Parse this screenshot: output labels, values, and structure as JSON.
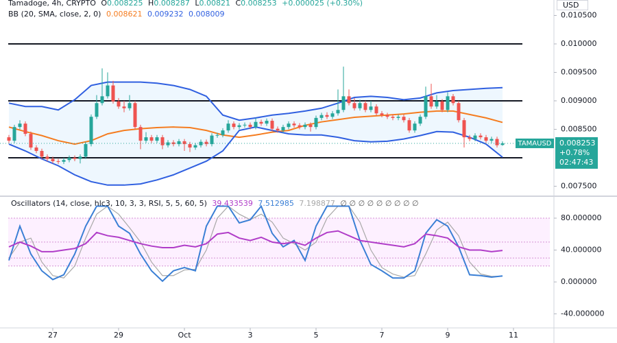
{
  "chart_data": [
    {
      "type": "candlestick",
      "title": "Tamadoge, 4h, CRYPTO",
      "ohlc_labels": [
        "O",
        "H",
        "L",
        "C"
      ],
      "change_label": "+0.000025 (+0.30%)",
      "currency": "USD",
      "up_color": "#26a69a",
      "down_color": "#ef5350",
      "x": [
        0,
        1,
        2,
        3,
        4,
        5,
        6,
        7,
        8,
        9,
        10,
        11,
        12,
        13,
        14,
        15,
        16,
        17,
        18,
        19,
        20,
        21,
        22,
        23,
        24,
        25,
        26,
        27,
        28,
        29,
        30,
        31,
        32,
        33,
        34,
        35,
        36,
        37,
        38,
        39,
        40,
        41,
        42,
        43,
        44,
        45,
        46,
        47,
        48,
        49,
        50,
        51,
        52,
        53,
        54,
        55,
        56,
        57,
        58,
        59,
        60,
        61,
        62,
        63,
        64,
        65,
        66,
        67,
        68,
        69,
        70,
        71,
        72,
        73,
        74,
        75,
        76,
        77,
        78,
        79,
        80,
        81,
        82,
        83,
        84,
        85,
        86,
        87,
        88,
        89,
        90
      ],
      "open": [
        0.00836,
        0.0083,
        0.00854,
        0.0086,
        0.00842,
        0.00818,
        0.00812,
        0.00802,
        0.00798,
        0.00794,
        0.00793,
        0.00796,
        0.008,
        0.00798,
        0.00802,
        0.00824,
        0.00872,
        0.00896,
        0.00908,
        0.00927,
        0.00899,
        0.0089,
        0.00887,
        0.00896,
        0.00854,
        0.0083,
        0.00836,
        0.0083,
        0.00836,
        0.00822,
        0.00827,
        0.00824,
        0.00829,
        0.00824,
        0.00818,
        0.00822,
        0.00828,
        0.00824,
        0.00839,
        0.0084,
        0.00848,
        0.0086,
        0.00854,
        0.00857,
        0.00858,
        0.00854,
        0.00863,
        0.0086,
        0.00865,
        0.00851,
        0.00848,
        0.00854,
        0.0086,
        0.00857,
        0.00854,
        0.00858,
        0.00854,
        0.0087,
        0.00875,
        0.00872,
        0.00878,
        0.00884,
        0.00908,
        0.00896,
        0.00887,
        0.00896,
        0.00884,
        0.0089,
        0.00878,
        0.00875,
        0.00872,
        0.0087,
        0.00872,
        0.00866,
        0.00848,
        0.0086,
        0.00872,
        0.00908,
        0.0089,
        0.00899,
        0.00884,
        0.00908,
        0.00896,
        0.00866,
        0.00836,
        0.00833,
        0.00839,
        0.00836,
        0.0083,
        0.00833,
        0.008225
      ],
      "high": [
        0.0084,
        0.00858,
        0.00866,
        0.00864,
        0.00846,
        0.00822,
        0.00816,
        0.00806,
        0.00802,
        0.00798,
        0.008,
        0.00804,
        0.00804,
        0.00806,
        0.00828,
        0.00876,
        0.0091,
        0.00957,
        0.0095,
        0.00935,
        0.00905,
        0.009,
        0.0091,
        0.009,
        0.00858,
        0.00845,
        0.0084,
        0.0084,
        0.0084,
        0.00831,
        0.00831,
        0.00833,
        0.00833,
        0.00828,
        0.00826,
        0.00832,
        0.00832,
        0.00843,
        0.00844,
        0.00852,
        0.00866,
        0.00864,
        0.00861,
        0.00862,
        0.00862,
        0.0087,
        0.00867,
        0.00869,
        0.00869,
        0.00855,
        0.00858,
        0.00864,
        0.00864,
        0.00861,
        0.00862,
        0.00862,
        0.00874,
        0.00879,
        0.0088,
        0.00882,
        0.0092,
        0.0096,
        0.0092,
        0.00905,
        0.00902,
        0.009,
        0.009,
        0.00894,
        0.00882,
        0.00879,
        0.00876,
        0.00876,
        0.00876,
        0.0087,
        0.00864,
        0.00876,
        0.00925,
        0.0093,
        0.0091,
        0.00903,
        0.00915,
        0.00912,
        0.009,
        0.0087,
        0.0084,
        0.00843,
        0.00843,
        0.0084,
        0.00837,
        0.00837,
        0.008287
      ],
      "low": [
        0.00826,
        0.00826,
        0.0085,
        0.00838,
        0.00814,
        0.00808,
        0.00798,
        0.00794,
        0.0079,
        0.00789,
        0.00789,
        0.00792,
        0.00794,
        0.0079,
        0.00798,
        0.0082,
        0.00868,
        0.00892,
        0.00904,
        0.00895,
        0.00886,
        0.0088,
        0.00883,
        0.0085,
        0.00815,
        0.00826,
        0.00826,
        0.00826,
        0.00815,
        0.00818,
        0.0082,
        0.0082,
        0.00812,
        0.0081,
        0.00814,
        0.00818,
        0.0082,
        0.0082,
        0.00835,
        0.00836,
        0.00844,
        0.0085,
        0.0085,
        0.00853,
        0.0085,
        0.0085,
        0.00856,
        0.00856,
        0.00847,
        0.00844,
        0.00844,
        0.0085,
        0.00853,
        0.0085,
        0.0085,
        0.00846,
        0.0085,
        0.00866,
        0.00868,
        0.00868,
        0.00874,
        0.0088,
        0.00892,
        0.00883,
        0.00883,
        0.0088,
        0.0088,
        0.00874,
        0.00871,
        0.00868,
        0.00866,
        0.00866,
        0.00862,
        0.00844,
        0.00844,
        0.00856,
        0.00868,
        0.00886,
        0.00886,
        0.0088,
        0.0088,
        0.00892,
        0.00862,
        0.00818,
        0.00829,
        0.00829,
        0.00832,
        0.00826,
        0.00826,
        0.00818,
        0.00821
      ],
      "close": [
        0.0083,
        0.00854,
        0.0086,
        0.00842,
        0.00818,
        0.00812,
        0.00802,
        0.00798,
        0.00794,
        0.00793,
        0.00796,
        0.008,
        0.00798,
        0.00802,
        0.00824,
        0.00872,
        0.00896,
        0.00908,
        0.00927,
        0.00899,
        0.0089,
        0.00887,
        0.00896,
        0.00854,
        0.0083,
        0.00836,
        0.0083,
        0.00836,
        0.00822,
        0.00827,
        0.00824,
        0.00829,
        0.00824,
        0.00818,
        0.00822,
        0.00828,
        0.00824,
        0.00839,
        0.0084,
        0.00848,
        0.0086,
        0.00854,
        0.00857,
        0.00858,
        0.00854,
        0.00863,
        0.0086,
        0.00865,
        0.00851,
        0.00848,
        0.00854,
        0.0086,
        0.00857,
        0.00854,
        0.00858,
        0.00854,
        0.0087,
        0.00875,
        0.00872,
        0.00878,
        0.00884,
        0.00908,
        0.00896,
        0.00887,
        0.00896,
        0.00884,
        0.0089,
        0.00878,
        0.00875,
        0.00872,
        0.0087,
        0.00872,
        0.00866,
        0.00848,
        0.0086,
        0.00872,
        0.00908,
        0.0089,
        0.00899,
        0.00884,
        0.00908,
        0.00896,
        0.00866,
        0.00836,
        0.00833,
        0.00839,
        0.00836,
        0.0083,
        0.00833,
        0.00822,
        0.008253
      ],
      "bb": {
        "label": "BB (20, SMA, close, 2, 0)",
        "band_color": "#2196f3",
        "upper_color": "#2f5fe0",
        "middle_color": "#f57c1f",
        "lower_color": "#2f5fe0",
        "x": [
          0,
          3,
          6,
          9,
          12,
          15,
          18,
          21,
          24,
          27,
          30,
          33,
          36,
          39,
          42,
          45,
          48,
          51,
          54,
          57,
          60,
          63,
          66,
          69,
          72,
          75,
          78,
          81,
          84,
          87,
          90
        ],
        "upper": [
          0.00896,
          0.0089,
          0.0089,
          0.00884,
          0.00902,
          0.00927,
          0.00933,
          0.00933,
          0.00933,
          0.00931,
          0.00927,
          0.0092,
          0.00908,
          0.00875,
          0.00866,
          0.0087,
          0.00875,
          0.00878,
          0.00882,
          0.00887,
          0.00896,
          0.00906,
          0.00908,
          0.00906,
          0.00902,
          0.00905,
          0.00914,
          0.00918,
          0.0092,
          0.00922,
          0.009232
        ],
        "middle": [
          0.00854,
          0.00846,
          0.00839,
          0.0083,
          0.00824,
          0.0083,
          0.00842,
          0.00848,
          0.00851,
          0.00853,
          0.00854,
          0.00853,
          0.00848,
          0.0084,
          0.00836,
          0.0084,
          0.00845,
          0.00848,
          0.00857,
          0.00863,
          0.00867,
          0.00871,
          0.00873,
          0.00875,
          0.00877,
          0.0088,
          0.00882,
          0.00882,
          0.00876,
          0.0087,
          0.008621
        ],
        "lower": [
          0.00824,
          0.00812,
          0.00798,
          0.00786,
          0.0077,
          0.00758,
          0.00752,
          0.00752,
          0.00754,
          0.00761,
          0.0077,
          0.00782,
          0.00794,
          0.00812,
          0.00848,
          0.00854,
          0.00848,
          0.00842,
          0.0084,
          0.0084,
          0.00836,
          0.0083,
          0.00828,
          0.00829,
          0.00833,
          0.00839,
          0.00846,
          0.00845,
          0.00836,
          0.00824,
          0.008009
        ]
      },
      "hlines": [
        0.01,
        0.009,
        0.008
      ],
      "last_label": {
        "symbol": "TAMAUSD",
        "change": "+0.78%",
        "countdown": "02:47:43"
      },
      "xlim": [
        -1.625,
        99
      ],
      "ylim": [
        0.007337,
        0.010771
      ],
      "yticks": [
        {
          "value": 0.0105,
          "label": "0.010500"
        },
        {
          "value": 0.01,
          "label": "0.010000"
        },
        {
          "value": 0.0095,
          "label": "0.009500"
        },
        {
          "value": 0.009,
          "label": "0.009000"
        },
        {
          "value": 0.0085,
          "label": "0.008500"
        },
        {
          "value": 0.0075,
          "label": "0.007500"
        }
      ]
    },
    {
      "type": "line",
      "title": "Oscillators (14, close, hlc3, 10, 3, 3, RSI, 5, 5, 60, 5)",
      "markers": "∅ ∅ ∅ ∅ ∅ ∅ ∅ ∅ ∅",
      "x": [
        0,
        2,
        4,
        6,
        8,
        10,
        12,
        14,
        16,
        18,
        20,
        22,
        24,
        26,
        28,
        30,
        32,
        34,
        36,
        38,
        40,
        42,
        44,
        46,
        48,
        50,
        52,
        54,
        56,
        58,
        60,
        62,
        64,
        66,
        68,
        70,
        72,
        74,
        76,
        78,
        80,
        82,
        84,
        86,
        88,
        90
      ],
      "series": [
        {
          "color": "#b03cc8",
          "values": [
            44,
            50,
            45,
            38,
            38,
            40,
            42,
            48,
            62,
            58,
            56,
            52,
            48,
            45,
            43,
            43,
            46,
            44,
            48,
            60,
            62,
            55,
            52,
            56,
            50,
            48,
            50,
            46,
            55,
            62,
            64,
            58,
            52,
            50,
            48,
            46,
            44,
            48,
            60,
            58,
            55,
            44,
            40,
            40,
            38,
            39.433539
          ]
        },
        {
          "color": "#3a7fd5",
          "values": [
            27,
            70,
            35,
            14,
            3,
            9,
            35,
            70,
            95,
            95,
            70,
            61,
            35,
            14,
            1,
            14,
            18,
            14,
            70,
            95,
            95,
            74,
            78,
            95,
            61,
            44,
            52,
            27,
            70,
            95,
            95,
            95,
            52,
            22,
            14,
            5,
            5,
            14,
            61,
            78,
            70,
            44,
            9,
            8,
            6,
            7.512985
          ]
        },
        {
          "color": "#a8a8a8",
          "values": [
            30,
            50,
            55,
            25,
            8,
            5,
            20,
            55,
            85,
            95,
            85,
            68,
            50,
            25,
            8,
            8,
            15,
            16,
            40,
            80,
            95,
            85,
            78,
            85,
            75,
            55,
            48,
            40,
            50,
            80,
            95,
            95,
            75,
            40,
            18,
            10,
            6,
            8,
            35,
            65,
            75,
            58,
            25,
            10,
            7,
            7.198877
          ]
        }
      ],
      "band": [
        20,
        80
      ],
      "band_color": "#e040fb",
      "levels": [
        80,
        50,
        30,
        20
      ],
      "xlim": [
        -1.625,
        99
      ],
      "ylim": [
        -57.6,
        105.8
      ],
      "yticks": [
        {
          "value": 80,
          "label": "80.000000"
        },
        {
          "value": 40,
          "label": "40.000000"
        },
        {
          "value": 0,
          "label": "0.000000"
        },
        {
          "value": -40,
          "label": "-40.000000"
        }
      ],
      "xticks": [
        {
          "value": 8,
          "label": "27"
        },
        {
          "value": 20,
          "label": "29"
        },
        {
          "value": 32,
          "label": "Oct"
        },
        {
          "value": 44,
          "label": "3"
        },
        {
          "value": 56,
          "label": "5"
        },
        {
          "value": 68,
          "label": "7"
        },
        {
          "value": 80,
          "label": "9"
        },
        {
          "value": 92,
          "label": "11"
        }
      ]
    }
  ]
}
